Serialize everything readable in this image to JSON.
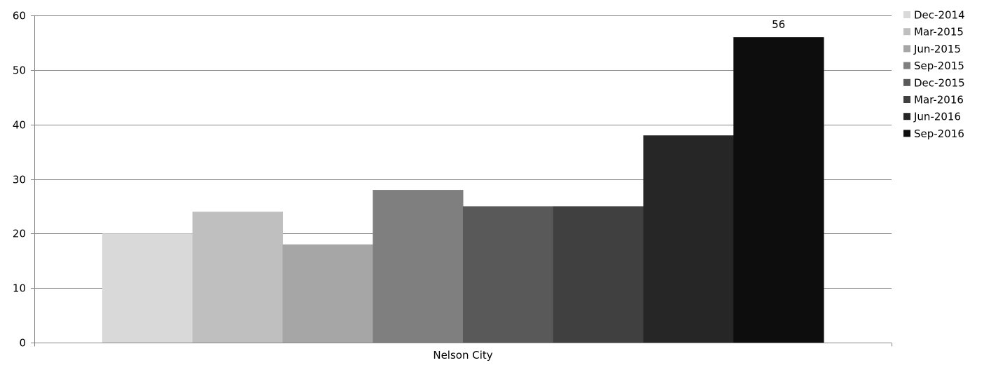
{
  "chart_data": {
    "type": "bar",
    "title": "",
    "xlabel": "",
    "ylabel": "",
    "categories": [
      "Nelson City"
    ],
    "ylim": [
      0,
      60
    ],
    "yticks": [
      0,
      10,
      20,
      30,
      40,
      50,
      60
    ],
    "grid": true,
    "legend_position": "right",
    "series": [
      {
        "name": "Dec-2014",
        "values": [
          20
        ],
        "color": "#d9d9d9"
      },
      {
        "name": "Mar-2015",
        "values": [
          24
        ],
        "color": "#bfbfbf"
      },
      {
        "name": "Jun-2015",
        "values": [
          18
        ],
        "color": "#a6a6a6"
      },
      {
        "name": "Sep-2015",
        "values": [
          28
        ],
        "color": "#7f7f7f"
      },
      {
        "name": "Dec-2015",
        "values": [
          25
        ],
        "color": "#595959"
      },
      {
        "name": "Mar-2016",
        "values": [
          25
        ],
        "color": "#404040"
      },
      {
        "name": "Jun-2016",
        "values": [
          38
        ],
        "color": "#262626"
      },
      {
        "name": "Sep-2016",
        "values": [
          56
        ],
        "color": "#0d0d0d",
        "data_label": "56"
      }
    ]
  }
}
